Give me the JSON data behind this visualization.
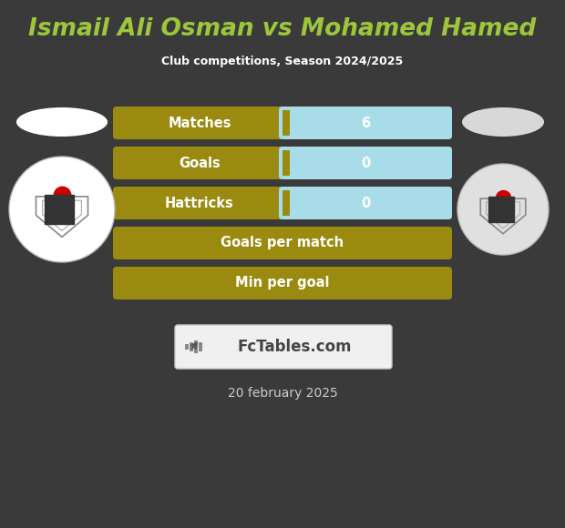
{
  "title": "Ismail Ali Osman vs Mohamed Hamed",
  "subtitle": "Club competitions, Season 2024/2025",
  "background_color": "#3a3a3a",
  "title_color": "#9dc63c",
  "subtitle_color": "#ffffff",
  "date_text": "20 february 2025",
  "date_color": "#cccccc",
  "rows": [
    {
      "label": "Matches",
      "value": "6",
      "has_value": true
    },
    {
      "label": "Goals",
      "value": "0",
      "has_value": true
    },
    {
      "label": "Hattricks",
      "value": "0",
      "has_value": true
    },
    {
      "label": "Goals per match",
      "value": "",
      "has_value": false
    },
    {
      "label": "Min per goal",
      "value": "",
      "has_value": false
    }
  ],
  "bar_gold_color": "#9a8a10",
  "bar_cyan_color": "#a8dce8",
  "bar_label_color": "#ffffff",
  "bar_value_color": "#ffffff",
  "logo_bg_color": "#ffffff",
  "fctables_bg": "#f0f0f0",
  "fctables_border": "#cccccc"
}
